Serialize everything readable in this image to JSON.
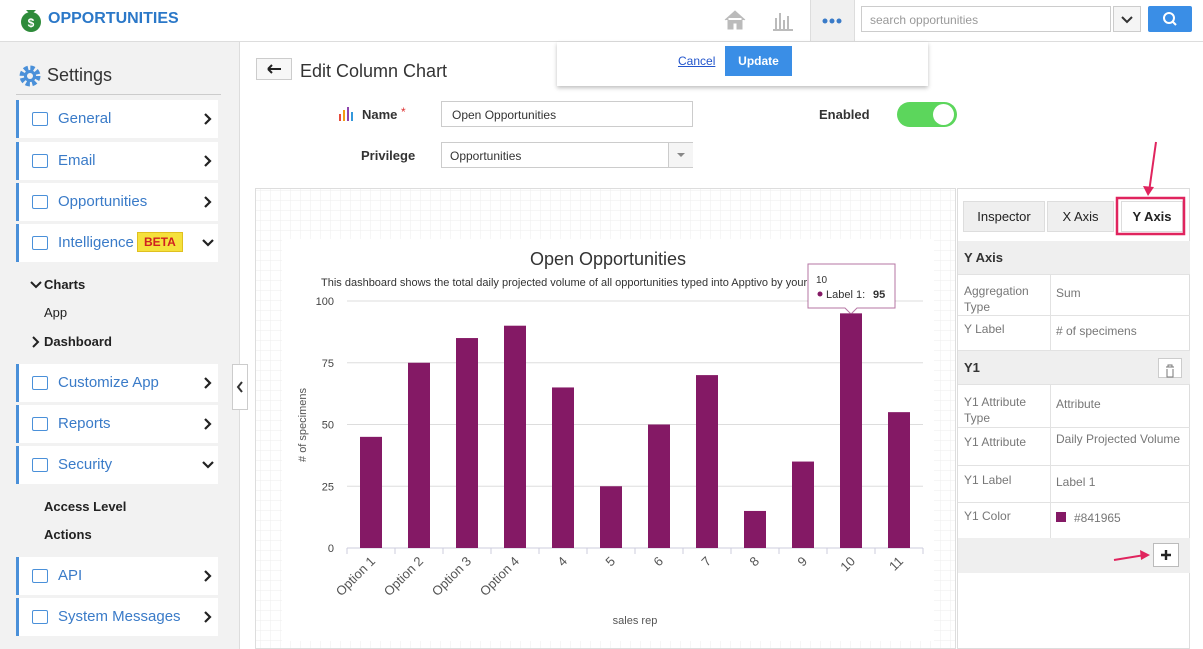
{
  "header": {
    "app_title": "OPPORTUNITIES",
    "search_placeholder": "search opportunities"
  },
  "popover": {
    "cancel": "Cancel",
    "update": "Update"
  },
  "sidebar": {
    "title": "Settings",
    "menu": [
      {
        "label": "General"
      },
      {
        "label": "Email"
      },
      {
        "label": "Opportunities"
      },
      {
        "label": "Intelligence",
        "badge": "BETA",
        "children": [
          "Charts",
          "App",
          "Dashboard"
        ]
      },
      {
        "label": "Customize App"
      },
      {
        "label": "Reports"
      },
      {
        "label": "Security",
        "children": [
          "Access Level",
          "Actions"
        ]
      },
      {
        "label": "API"
      },
      {
        "label": "System Messages"
      }
    ]
  },
  "form": {
    "heading": "Edit Column Chart",
    "name_label": "Name",
    "required": "*",
    "name_value": "Open Opportunities",
    "enabled_label": "Enabled",
    "privilege_label": "Privilege",
    "privilege_value": "Opportunities"
  },
  "inspector": {
    "tabs": [
      "Inspector",
      "X Axis",
      "Y Axis"
    ],
    "y_axis": {
      "title": "Y Axis",
      "rows": [
        [
          "Aggregation Type",
          "Sum"
        ],
        [
          "Y Label",
          "# of specimens"
        ]
      ]
    },
    "y1": {
      "title": "Y1",
      "rows": [
        [
          "Y1 Attribute Type",
          "Attribute"
        ],
        [
          "Y1 Attribute",
          "Daily Projected Volume"
        ],
        [
          "Y1 Label",
          "Label 1"
        ],
        [
          "Y1 Color",
          "#841965"
        ]
      ]
    }
  },
  "chart_data": {
    "type": "bar",
    "title": "Open Opportunities",
    "subtitle": "This dashboard shows the total daily projected volume of all opportunities typed into Apptivo by your team",
    "x_label": "sales rep",
    "y_label": "# of specimens",
    "categories": [
      "Option 1",
      "Option 2",
      "Option 3",
      "Option 4",
      "4",
      "5",
      "6",
      "7",
      "8",
      "9",
      "10",
      "11"
    ],
    "series": [
      {
        "name": "Label 1",
        "color": "#841965",
        "values": [
          45,
          75,
          85,
          90,
          65,
          25,
          50,
          70,
          15,
          35,
          95,
          55
        ]
      }
    ],
    "ylim": [
      0,
      100
    ],
    "yticks": [
      0,
      25,
      50,
      75,
      100
    ],
    "grid": true,
    "tooltip": {
      "category": "10",
      "label": "Label 1:",
      "value": 95
    }
  }
}
